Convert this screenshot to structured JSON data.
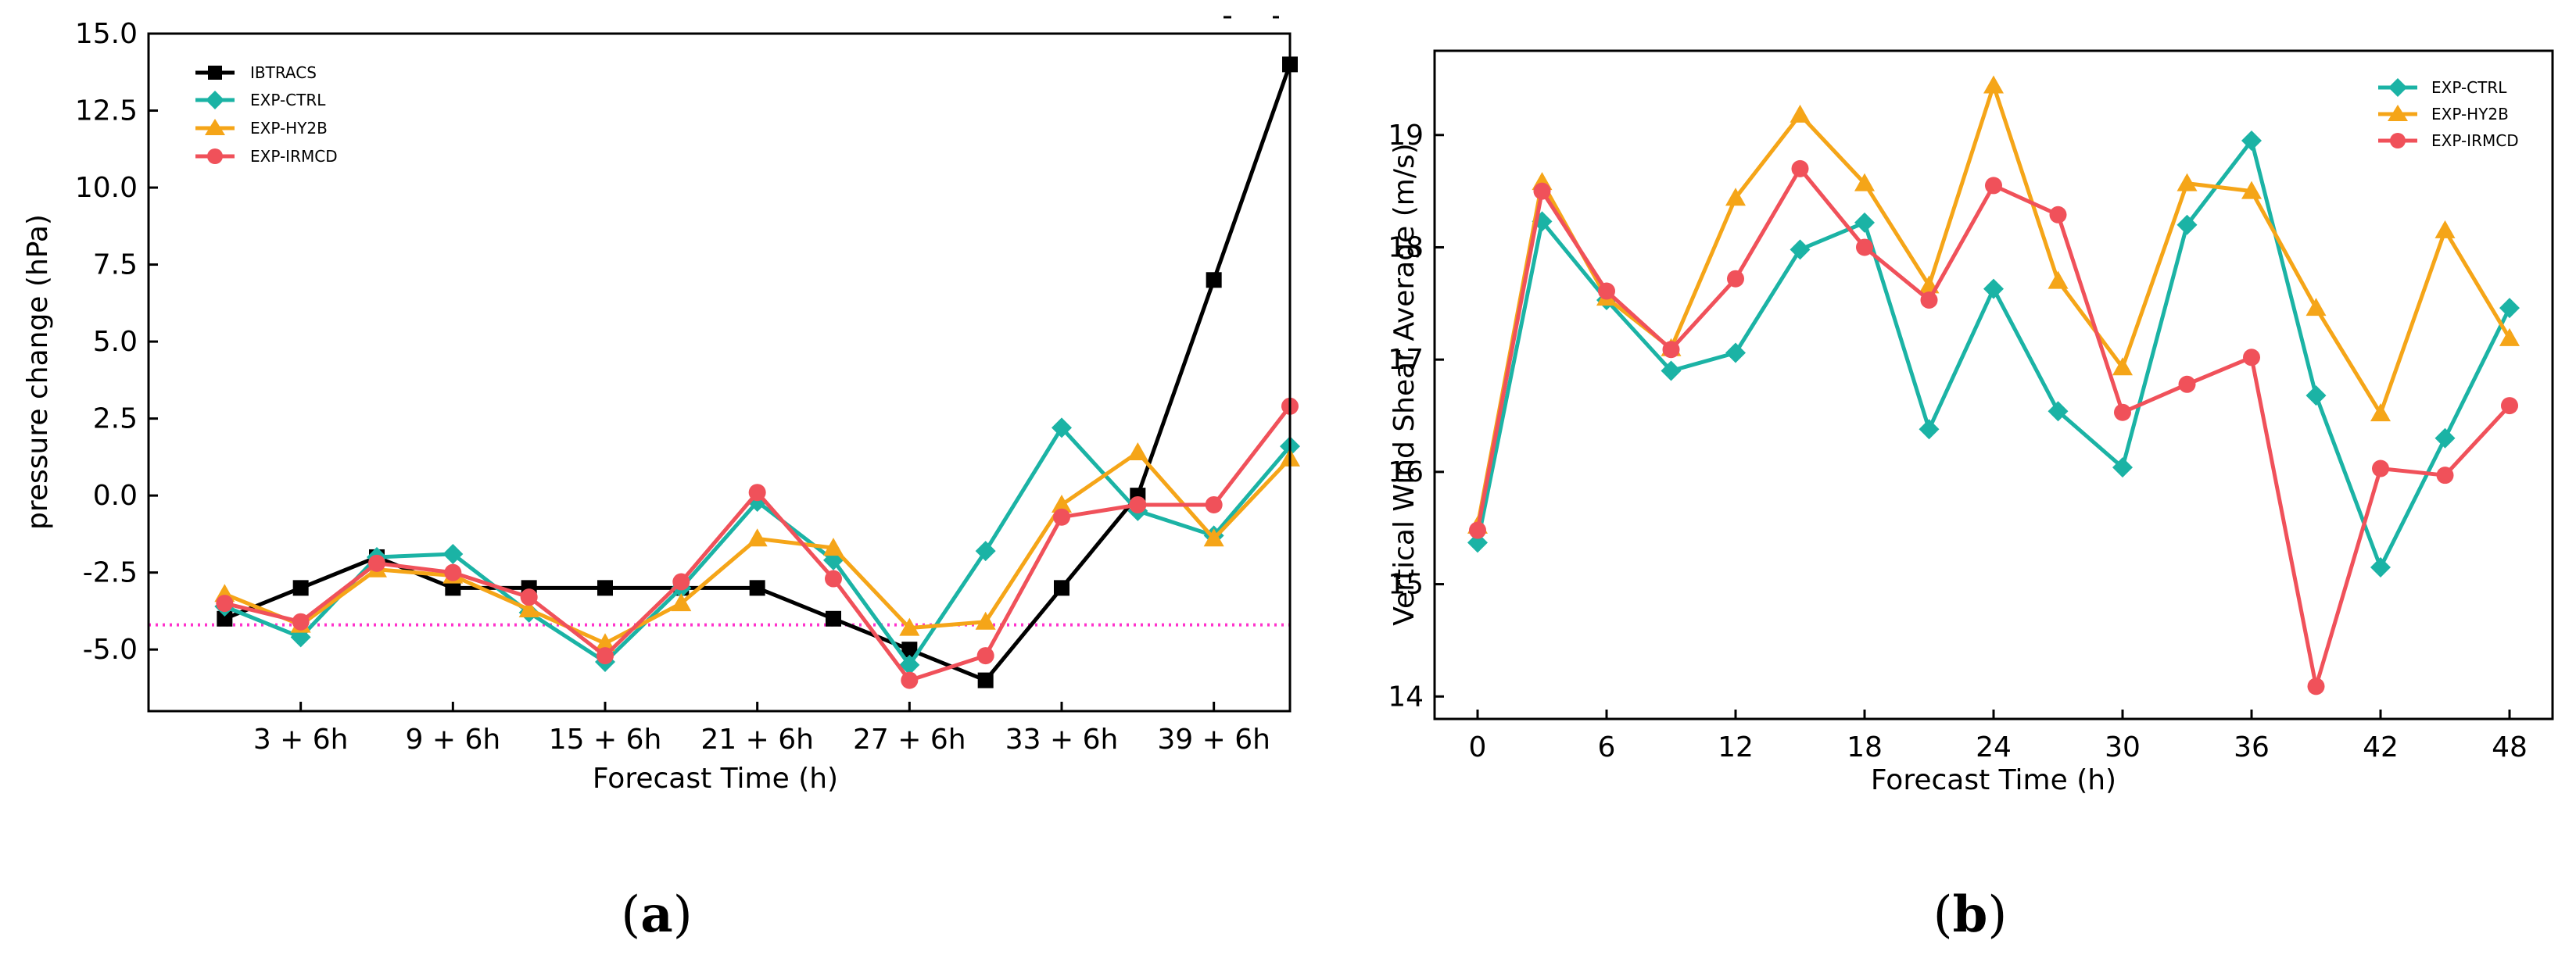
{
  "figure": {
    "captions": [
      {
        "open": "(",
        "letter": "a",
        "close": ")"
      },
      {
        "open": "(",
        "letter": "b",
        "close": ")"
      }
    ],
    "colors": {
      "IBTRACS": "#000000",
      "EXP-CTRL": "#1bb3a5",
      "EXP-HY2B": "#f5a518",
      "EXP-IRMCD": "#f0515a",
      "reference_line": "#ff33cc"
    }
  },
  "chart_data": [
    {
      "id": "a",
      "type": "line",
      "xlabel": "Forecast Time (h)",
      "ylabel": "pressure change (hPa)",
      "ylim": [
        -7.0,
        15.0
      ],
      "yticks": [
        15.0,
        12.5,
        10.0,
        7.5,
        5.0,
        2.5,
        0.0,
        -2.5,
        -5.0
      ],
      "ytick_labels": [
        "15.0",
        "12.5",
        "10.0",
        "7.5",
        "5.0",
        "2.5",
        "0.0",
        "-2.5",
        "-5.0"
      ],
      "xlim": [
        -1,
        14
      ],
      "xtick_positions": [
        1,
        3,
        5,
        7,
        9,
        11,
        13
      ],
      "xtick_labels": [
        "3 + 6h",
        "9 + 6h",
        "15 + 6h",
        "21 + 6h",
        "27 + 6h",
        "33 + 6h",
        "39 + 6h"
      ],
      "x": [
        0,
        1,
        2,
        3,
        4,
        5,
        6,
        7,
        8,
        9,
        10,
        11,
        12,
        13,
        14
      ],
      "reference_line": {
        "y": -4.2,
        "style": "dotted"
      },
      "legend_position": "top-left",
      "series": [
        {
          "name": "IBTRACS",
          "marker": "square",
          "values": [
            -4.0,
            -3.0,
            -2.0,
            -3.0,
            -3.0,
            -3.0,
            -3.0,
            -3.0,
            -4.0,
            -5.0,
            -6.0,
            -3.0,
            0.0,
            7.0,
            14.0
          ]
        },
        {
          "name": "EXP-CTRL",
          "marker": "diamond",
          "values": [
            -3.6,
            -4.6,
            -2.0,
            -1.9,
            -3.8,
            -5.4,
            -3.0,
            -0.2,
            -2.1,
            -5.5,
            -1.8,
            2.2,
            -0.5,
            -1.3,
            1.6
          ]
        },
        {
          "name": "EXP-HY2B",
          "marker": "triangle",
          "values": [
            -3.2,
            -4.2,
            -2.4,
            -2.6,
            -3.7,
            -4.8,
            -3.5,
            -1.4,
            -1.7,
            -4.3,
            -4.1,
            -0.3,
            1.4,
            -1.4,
            1.2
          ]
        },
        {
          "name": "EXP-IRMCD",
          "marker": "circle",
          "values": [
            -3.5,
            -4.1,
            -2.2,
            -2.5,
            -3.3,
            -5.2,
            -2.8,
            0.1,
            -2.7,
            -6.0,
            -5.2,
            -0.7,
            -0.3,
            -0.3,
            2.9
          ]
        }
      ]
    },
    {
      "id": "b",
      "type": "line",
      "xlabel": "Forecast Time (h)",
      "ylabel": "Vertical Wind Shear Average (m/s)",
      "ylim": [
        13.8,
        19.75
      ],
      "yticks": [
        14,
        15,
        16,
        17,
        18,
        19
      ],
      "ytick_labels": [
        "14",
        "15",
        "16",
        "17",
        "18",
        "19"
      ],
      "xlim": [
        -2,
        50
      ],
      "xtick_positions": [
        0,
        6,
        12,
        18,
        24,
        30,
        36,
        42,
        48
      ],
      "xtick_labels": [
        "0",
        "6",
        "12",
        "18",
        "24",
        "30",
        "36",
        "42",
        "48"
      ],
      "x": [
        0,
        3,
        6,
        9,
        12,
        15,
        18,
        21,
        24,
        27,
        30,
        33,
        36,
        39,
        42,
        45,
        48
      ],
      "legend_position": "top-right",
      "series": [
        {
          "name": "EXP-CTRL",
          "marker": "diamond",
          "values": [
            15.37,
            18.23,
            17.53,
            16.9,
            17.06,
            17.98,
            18.22,
            16.38,
            17.63,
            16.54,
            16.04,
            18.2,
            18.95,
            16.68,
            15.15,
            16.3,
            17.46
          ]
        },
        {
          "name": "EXP-HY2B",
          "marker": "triangle",
          "values": [
            15.52,
            18.58,
            17.55,
            17.1,
            18.44,
            19.18,
            18.57,
            17.66,
            19.44,
            17.7,
            16.93,
            18.57,
            18.5,
            17.46,
            16.52,
            18.15,
            17.19
          ]
        },
        {
          "name": "EXP-IRMCD",
          "marker": "circle",
          "values": [
            15.48,
            18.5,
            17.61,
            17.09,
            17.72,
            18.7,
            18.0,
            17.53,
            18.55,
            18.29,
            16.53,
            16.78,
            17.02,
            14.09,
            16.03,
            15.97,
            16.59
          ]
        }
      ]
    }
  ]
}
